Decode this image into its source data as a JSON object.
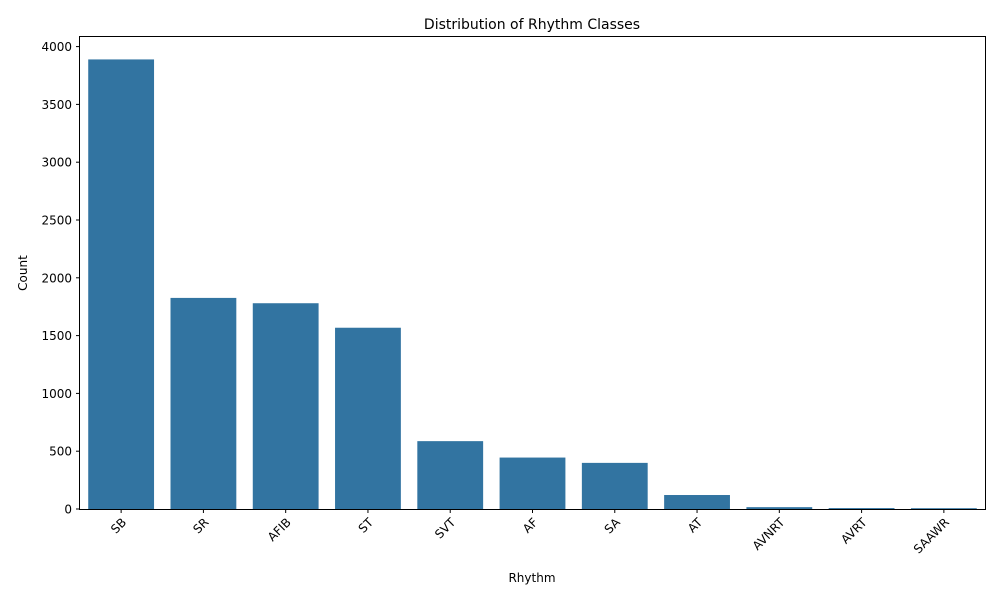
{
  "chart_data": {
    "type": "bar",
    "title": "Distribution of Rhythm Classes",
    "xlabel": "Rhythm",
    "ylabel": "Count",
    "categories": [
      "SB",
      "SR",
      "AFIB",
      "ST",
      "SVT",
      "AF",
      "SA",
      "AT",
      "AVNRT",
      "AVRT",
      "SAAWR"
    ],
    "values": [
      3889,
      1826,
      1780,
      1568,
      587,
      445,
      399,
      121,
      16,
      8,
      7
    ],
    "ylim": [
      0,
      4083
    ],
    "yticks": [
      0,
      500,
      1000,
      1500,
      2000,
      2500,
      3000,
      3500,
      4000
    ],
    "bar_color": "#3274a1",
    "grid": false,
    "legend": "none",
    "xtick_rotation": 45
  }
}
